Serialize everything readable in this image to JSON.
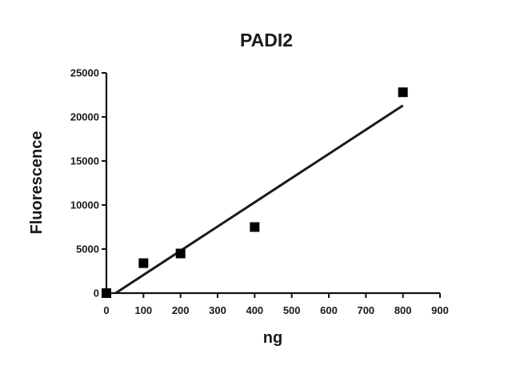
{
  "chart_data": {
    "type": "scatter",
    "title": "PADI2",
    "xlabel": "ng",
    "ylabel": "Fluorescence",
    "xlim": [
      0,
      900
    ],
    "ylim": [
      0,
      25000
    ],
    "x_ticks": [
      0,
      100,
      200,
      300,
      400,
      500,
      600,
      700,
      800,
      900
    ],
    "y_ticks": [
      0,
      5000,
      10000,
      15000,
      20000,
      25000
    ],
    "grid": false,
    "legend": "none",
    "series": [
      {
        "marker": "square",
        "x": [
          0,
          100,
          200,
          400,
          800
        ],
        "y": [
          0,
          3400,
          4500,
          7500,
          22800
        ]
      }
    ],
    "fit_line": {
      "x": [
        25,
        800
      ],
      "y": [
        0,
        21300
      ]
    },
    "colors": {
      "points": "#000000",
      "line": "#1a1a1a",
      "axes": "#111111"
    }
  }
}
